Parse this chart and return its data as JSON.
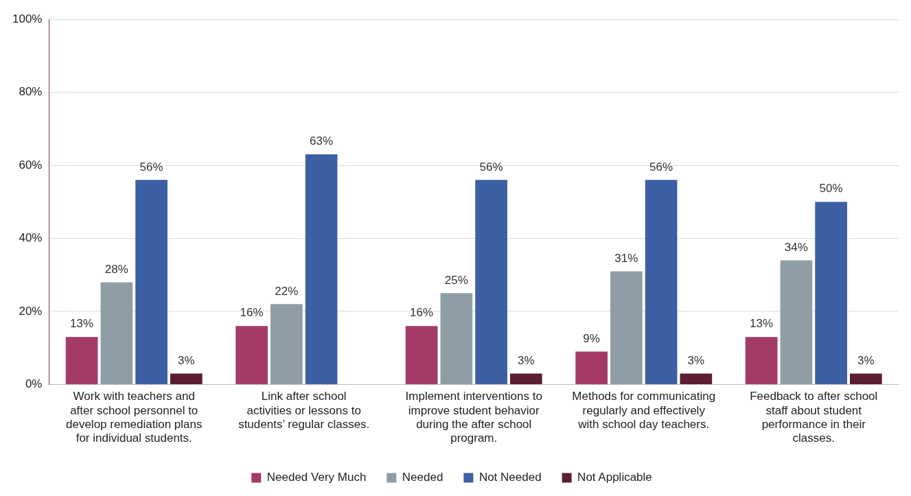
{
  "chart_data": {
    "type": "bar",
    "categories": [
      "Work with teachers and after school personnel to develop remediation plans for individual students.",
      "Link after school activities or lessons to students’ regular classes.",
      "Implement interventions to improve student behavior during the after school program.",
      "Methods for communicating regularly and effectively with school day teachers.",
      "Feedback to after school staff about student performance in their classes."
    ],
    "series": [
      {
        "name": "Needed Very Much",
        "color": "#a33a67",
        "values": [
          13,
          16,
          16,
          9,
          13
        ],
        "value_labels": [
          "13%",
          "16%",
          "16%",
          "9%",
          "13%"
        ]
      },
      {
        "name": "Needed",
        "color": "#8f9ea6",
        "values": [
          28,
          22,
          25,
          31,
          34
        ],
        "value_labels": [
          "28%",
          "22%",
          "25%",
          "31%",
          "34%"
        ]
      },
      {
        "name": "Not Needed",
        "color": "#3d5fa3",
        "values": [
          56,
          63,
          56,
          56,
          50
        ],
        "value_labels": [
          "56%",
          "63%",
          "56%",
          "56%",
          "50%"
        ]
      },
      {
        "name": "Not Applicable",
        "color": "#5b1e33",
        "values": [
          3,
          null,
          3,
          3,
          3
        ],
        "value_labels": [
          "3%",
          null,
          "3%",
          "3%",
          "3%"
        ]
      }
    ],
    "ylim": [
      0,
      100
    ],
    "yticks": [
      {
        "value": 0,
        "label": "0%"
      },
      {
        "value": 20,
        "label": "20%"
      },
      {
        "value": 40,
        "label": "40%"
      },
      {
        "value": 60,
        "label": "60%"
      },
      {
        "value": 80,
        "label": "80%"
      },
      {
        "value": 100,
        "label": "100%"
      }
    ],
    "grid": "y",
    "legend": "bottom"
  }
}
